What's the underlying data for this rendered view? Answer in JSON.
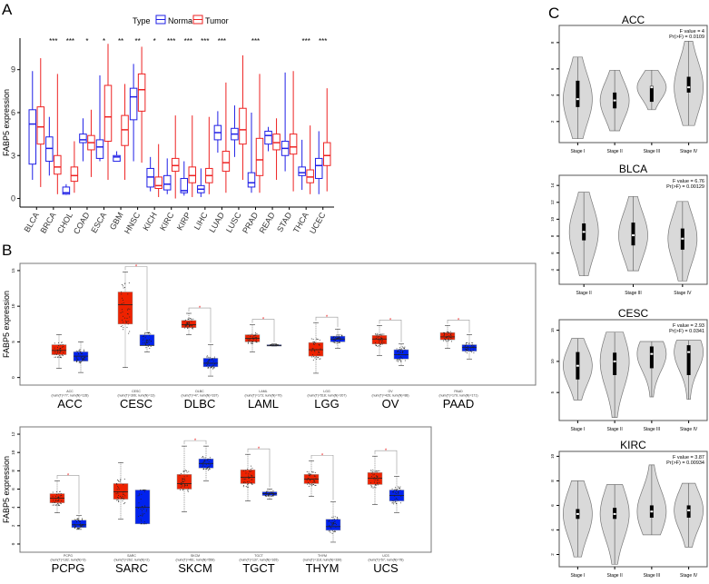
{
  "colors": {
    "normal": "#1f1fe6",
    "tumor": "#ee2222",
    "gepia_tumor": "#ee2200",
    "gepia_normal": "#0022ee",
    "violin_fill": "#d9d9d9"
  },
  "chart_data": [
    {
      "panel": "A",
      "type": "box",
      "ylabel": "FABP5 expression",
      "legend_title": "Type",
      "legend": [
        "Normal",
        "Tumor"
      ],
      "legend_position": "top",
      "yticks": [
        0,
        3,
        6,
        9
      ],
      "ylim": [
        -0.6,
        11.2
      ],
      "categories": [
        "BLCA",
        "BRCA",
        "CHOL",
        "COAD",
        "ESCA",
        "GBM",
        "HNSC",
        "KICH",
        "KIRC",
        "KIRP",
        "LIHC",
        "LUAD",
        "LUSC",
        "PRAD",
        "READ",
        "STAD",
        "THCA",
        "UCEC"
      ],
      "significance": [
        "",
        "***",
        "***",
        "*",
        "*",
        "**",
        "**",
        "*",
        "***",
        "***",
        "***",
        "***",
        "",
        "***",
        "",
        "",
        "***",
        "***"
      ],
      "normal": [
        [
          1.3,
          2.4,
          5.2,
          6.2,
          8.9
        ],
        [
          1.6,
          2.6,
          3.5,
          4.3,
          5.7
        ],
        [
          0.25,
          0.3,
          0.4,
          0.8,
          1.0
        ],
        [
          2.6,
          3.9,
          4.1,
          4.5,
          5.6
        ],
        [
          2.6,
          2.8,
          3.6,
          4.1,
          8.6
        ],
        [
          2.6,
          2.6,
          2.9,
          3.0,
          3.3
        ],
        [
          2.6,
          5.5,
          7.1,
          7.7,
          9.4
        ],
        [
          0.5,
          0.8,
          1.5,
          2.1,
          2.9
        ],
        [
          0.3,
          0.6,
          1.0,
          1.6,
          2.8
        ],
        [
          0.2,
          0.4,
          0.55,
          1.4,
          2.6
        ],
        [
          0.1,
          0.4,
          0.65,
          0.9,
          2.1
        ],
        [
          3.2,
          4.1,
          4.6,
          5.1,
          6.1
        ],
        [
          2.9,
          4.1,
          4.5,
          4.9,
          6.5
        ],
        [
          0.4,
          0.8,
          1.1,
          1.8,
          6.0
        ],
        [
          3.3,
          3.8,
          4.4,
          4.7,
          5.0
        ],
        [
          1.9,
          3.0,
          3.5,
          4.0,
          8.8
        ],
        [
          0.6,
          1.6,
          1.8,
          2.2,
          4.1
        ],
        [
          0.3,
          1.4,
          2.3,
          2.8,
          4.7
        ]
      ],
      "tumor": [
        [
          0.8,
          3.8,
          5.0,
          6.4,
          9.8
        ],
        [
          0.3,
          1.7,
          2.2,
          3.0,
          8.7
        ],
        [
          0.4,
          1.2,
          1.6,
          2.2,
          4.0
        ],
        [
          1.5,
          3.4,
          3.9,
          4.4,
          6.2
        ],
        [
          1.3,
          4.0,
          5.7,
          7.9,
          10.8
        ],
        [
          1.3,
          3.7,
          4.8,
          5.8,
          8.0
        ],
        [
          2.5,
          6.1,
          7.6,
          8.7,
          10.6
        ],
        [
          0.1,
          0.7,
          0.9,
          1.5,
          3.8
        ],
        [
          0.0,
          1.9,
          2.3,
          2.8,
          5.8
        ],
        [
          0.1,
          1.1,
          1.6,
          2.2,
          5.8
        ],
        [
          0.3,
          1.1,
          1.6,
          2.1,
          5.7
        ],
        [
          0.4,
          1.9,
          2.5,
          3.3,
          8.1
        ],
        [
          1.3,
          3.8,
          4.8,
          6.3,
          10.0
        ],
        [
          0.4,
          1.6,
          2.7,
          4.2,
          8.7
        ],
        [
          1.3,
          3.4,
          3.9,
          4.5,
          5.6
        ],
        [
          0.5,
          3.1,
          3.6,
          4.5,
          8.9
        ],
        [
          0.3,
          1.1,
          1.5,
          2.0,
          5.1
        ],
        [
          0.5,
          2.3,
          3.0,
          3.9,
          7.7
        ]
      ]
    },
    {
      "panel": "B-top",
      "type": "box",
      "ylabel": "FABP5 expression",
      "yticks": [
        0,
        5,
        10,
        15
      ],
      "ylim": [
        -0.3,
        15.5
      ],
      "categories": [
        "ACC",
        "CESC",
        "DLBC",
        "LAML",
        "LGG",
        "OV",
        "PAAD"
      ],
      "counts": [
        "(num(T)=77; num(N)=128)",
        "(num(T)=306; num(N)=13)",
        "(num(T)=47; num(N)=337)",
        "(num(T)=173; num(N)=70)",
        "(num(T)=518; num(N)=207)",
        "(num(T)=426; num(N)=88)",
        "(num(T)=179; num(N)=171)"
      ],
      "significance": [
        "",
        "*",
        "*",
        "*",
        "*",
        "*",
        "*"
      ],
      "tumor": [
        [
          1.3,
          3.2,
          3.8,
          4.6,
          6.0
        ],
        [
          1.4,
          7.5,
          10.2,
          12.0,
          14.8
        ],
        [
          6.0,
          7.0,
          7.4,
          8.0,
          9.0
        ],
        [
          3.6,
          5.0,
          5.5,
          6.0,
          7.4
        ],
        [
          0.6,
          3.0,
          3.9,
          4.9,
          7.7
        ],
        [
          3.1,
          4.7,
          5.4,
          5.9,
          7.3
        ],
        [
          4.1,
          5.3,
          5.7,
          6.3,
          7.3
        ]
      ],
      "normal": [
        [
          0.7,
          2.3,
          3.0,
          3.6,
          5.0
        ],
        [
          3.6,
          4.5,
          4.5,
          6.0,
          6.3
        ],
        [
          0.2,
          1.5,
          2.0,
          2.7,
          4.6
        ],
        [
          4.4,
          4.5,
          4.5,
          4.6,
          4.7
        ],
        [
          4.1,
          5.0,
          5.4,
          5.8,
          6.8
        ],
        [
          1.7,
          2.6,
          3.2,
          3.9,
          4.7
        ],
        [
          2.6,
          3.7,
          4.2,
          4.6,
          6.0
        ]
      ]
    },
    {
      "panel": "B-bottom",
      "type": "box",
      "ylabel": "FABP5 expression",
      "yticks": [
        0,
        2,
        4,
        6,
        8,
        10,
        12
      ],
      "ylim": [
        -0.3,
        12.4
      ],
      "categories": [
        "PCPG",
        "SARC",
        "SKCM",
        "TGCT",
        "THYM",
        "UCS"
      ],
      "counts": [
        "(num(T)=182; num(N)=3)",
        "(num(T)=262; num(N)=2)",
        "(num(T)=461; num(N)=558)",
        "(num(T)=137; num(N)=165)",
        "(num(T)=118; num(N)=339)",
        "(num(T)=57; num(N)=78)"
      ],
      "significance": [
        "*",
        "",
        "*",
        "*",
        "*",
        "*"
      ],
      "tumor": [
        [
          3.4,
          4.5,
          5.0,
          5.5,
          6.9
        ],
        [
          2.7,
          4.9,
          5.7,
          6.6,
          8.9
        ],
        [
          3.5,
          6.0,
          6.6,
          7.6,
          10.7
        ],
        [
          4.7,
          6.6,
          7.3,
          8.1,
          9.8
        ],
        [
          5.2,
          6.6,
          7.1,
          7.6,
          9.1
        ],
        [
          4.3,
          6.5,
          7.2,
          7.8,
          9.6
        ]
      ],
      "normal": [
        [
          1.6,
          1.8,
          2.1,
          2.6,
          3.1
        ],
        [
          2.2,
          2.2,
          4.0,
          5.9,
          5.9
        ],
        [
          6.9,
          8.3,
          8.8,
          9.3,
          10.7
        ],
        [
          4.9,
          5.3,
          5.5,
          5.7,
          6.0
        ],
        [
          0.2,
          1.5,
          1.9,
          2.7,
          4.6
        ],
        [
          3.4,
          4.7,
          5.3,
          5.9,
          7.4
        ]
      ]
    },
    {
      "panel": "C",
      "type": "violin",
      "title": "ACC",
      "stages": [
        "Stage I",
        "Stage II",
        "Stage III",
        "Stage IV"
      ],
      "f_value": "F value = 4",
      "p_value": "Pr(>F) = 0.0109",
      "yticks": [
        2,
        4,
        6,
        8
      ],
      "ylim": [
        0.4,
        9.3
      ],
      "values": [
        [
          0.7,
          6.9,
          3.1,
          3.7,
          5.1
        ],
        [
          1.3,
          5.9,
          3.0,
          3.6,
          4.2
        ],
        [
          2.9,
          5.9,
          3.5,
          4.6,
          4.7
        ],
        [
          1.7,
          8.1,
          4.2,
          4.6,
          5.4
        ]
      ]
    },
    {
      "panel": "C",
      "type": "violin",
      "title": "BLCA",
      "stages": [
        "Stage II",
        "Stage III",
        "Stage IV"
      ],
      "f_value": "F value = 6.76",
      "p_value": "Pr(>F) = 0.00129",
      "yticks": [
        4,
        6,
        8,
        10,
        12,
        14
      ],
      "ylim": [
        2.3,
        15.2
      ],
      "values": [
        [
          3.3,
          13.2,
          7.5,
          8.5,
          9.5
        ],
        [
          3.9,
          12.7,
          6.9,
          8.1,
          9.6
        ],
        [
          2.7,
          12.1,
          6.4,
          7.7,
          8.9
        ]
      ]
    },
    {
      "panel": "C",
      "type": "violin",
      "title": "CESC",
      "stages": [
        "Stage I",
        "Stage II",
        "Stage III",
        "Stage IV"
      ],
      "f_value": "F value = 2.93",
      "p_value": "Pr(>F) = 0.0341",
      "yticks": [
        5,
        10,
        15
      ],
      "ylim": [
        0.5,
        16.7
      ],
      "values": [
        [
          3.8,
          13.7,
          7.1,
          9.3,
          11.5
        ],
        [
          1.0,
          14.7,
          7.8,
          10.0,
          11.4
        ],
        [
          4.3,
          13.2,
          8.9,
          11.2,
          12.4
        ],
        [
          3.9,
          13.4,
          7.8,
          11.5,
          12.6
        ]
      ]
    },
    {
      "panel": "C",
      "type": "violin",
      "title": "KIRC",
      "stages": [
        "Stage I",
        "Stage II",
        "Stage III",
        "Stage IV"
      ],
      "f_value": "F value = 3.87",
      "p_value": "Pr(>F) = 0.00934",
      "yticks": [
        2,
        4,
        6,
        8,
        10
      ],
      "ylim": [
        1.0,
        10.4
      ],
      "values": [
        [
          1.8,
          8.0,
          4.9,
          5.3,
          5.7
        ],
        [
          1.2,
          7.7,
          4.9,
          5.3,
          5.8
        ],
        [
          3.6,
          9.3,
          5.0,
          5.5,
          6.0
        ],
        [
          2.6,
          7.8,
          5.0,
          5.6,
          6.0
        ]
      ]
    }
  ],
  "panel_labels": [
    "A",
    "B",
    "C"
  ]
}
